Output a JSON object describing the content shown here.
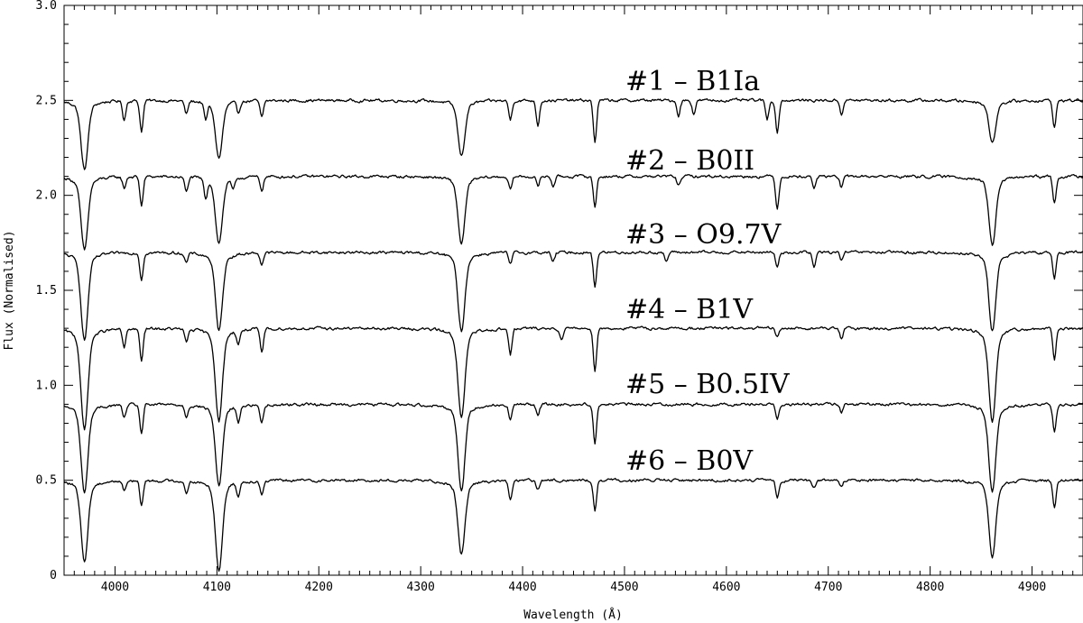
{
  "chart_data": {
    "type": "line",
    "title": "",
    "xlabel": "Wavelength (Å)",
    "ylabel": "Flux (Normalised)",
    "xlim": [
      3950,
      4950
    ],
    "ylim": [
      0,
      3.0
    ],
    "x_ticks": [
      4000,
      4100,
      4200,
      4300,
      4400,
      4500,
      4600,
      4700,
      4800,
      4900
    ],
    "x_tick_labels": [
      "4000",
      "4100",
      "4200",
      "4300",
      "4400",
      "4500",
      "4600",
      "4700",
      "4800",
      "4900"
    ],
    "y_ticks": [
      0,
      0.5,
      1.0,
      1.5,
      2.0,
      2.5,
      3.0
    ],
    "y_tick_labels": [
      "0",
      "0.5",
      "1.0",
      "1.5",
      "2.0",
      "2.5",
      "3.0"
    ],
    "grid": false,
    "series": [
      {
        "name": "#1 – B1Ia",
        "continuum": 2.5,
        "lines": [
          {
            "x": 3970,
            "depth": 0.3
          },
          {
            "x": 4009,
            "depth": 0.1
          },
          {
            "x": 4026,
            "depth": 0.16
          },
          {
            "x": 4070,
            "depth": 0.07
          },
          {
            "x": 4089,
            "depth": 0.09
          },
          {
            "x": 4102,
            "depth": 0.25
          },
          {
            "x": 4121,
            "depth": 0.06
          },
          {
            "x": 4144,
            "depth": 0.09
          },
          {
            "x": 4340,
            "depth": 0.24
          },
          {
            "x": 4388,
            "depth": 0.1
          },
          {
            "x": 4415,
            "depth": 0.13
          },
          {
            "x": 4471,
            "depth": 0.22
          },
          {
            "x": 4553,
            "depth": 0.08
          },
          {
            "x": 4568,
            "depth": 0.07
          },
          {
            "x": 4640,
            "depth": 0.1
          },
          {
            "x": 4650,
            "depth": 0.17
          },
          {
            "x": 4713,
            "depth": 0.07
          },
          {
            "x": 4861,
            "depth": 0.18
          },
          {
            "x": 4922,
            "depth": 0.14
          }
        ]
      },
      {
        "name": "#2 – B0II",
        "continuum": 2.1,
        "lines": [
          {
            "x": 3970,
            "depth": 0.32
          },
          {
            "x": 4009,
            "depth": 0.06
          },
          {
            "x": 4026,
            "depth": 0.15
          },
          {
            "x": 4070,
            "depth": 0.08
          },
          {
            "x": 4089,
            "depth": 0.1
          },
          {
            "x": 4102,
            "depth": 0.29
          },
          {
            "x": 4116,
            "depth": 0.06
          },
          {
            "x": 4144,
            "depth": 0.07
          },
          {
            "x": 4340,
            "depth": 0.29
          },
          {
            "x": 4388,
            "depth": 0.07
          },
          {
            "x": 4415,
            "depth": 0.05
          },
          {
            "x": 4430,
            "depth": 0.05
          },
          {
            "x": 4471,
            "depth": 0.16
          },
          {
            "x": 4553,
            "depth": 0.05
          },
          {
            "x": 4650,
            "depth": 0.17
          },
          {
            "x": 4686,
            "depth": 0.06
          },
          {
            "x": 4713,
            "depth": 0.06
          },
          {
            "x": 4861,
            "depth": 0.3
          },
          {
            "x": 4922,
            "depth": 0.14
          }
        ]
      },
      {
        "name": "#3 – O9.7V",
        "continuum": 1.7,
        "lines": [
          {
            "x": 3970,
            "depth": 0.38
          },
          {
            "x": 4026,
            "depth": 0.14
          },
          {
            "x": 4070,
            "depth": 0.05
          },
          {
            "x": 4102,
            "depth": 0.34
          },
          {
            "x": 4144,
            "depth": 0.06
          },
          {
            "x": 4340,
            "depth": 0.34
          },
          {
            "x": 4388,
            "depth": 0.06
          },
          {
            "x": 4430,
            "depth": 0.05
          },
          {
            "x": 4471,
            "depth": 0.18
          },
          {
            "x": 4541,
            "depth": 0.05
          },
          {
            "x": 4650,
            "depth": 0.08
          },
          {
            "x": 4686,
            "depth": 0.08
          },
          {
            "x": 4713,
            "depth": 0.04
          },
          {
            "x": 4861,
            "depth": 0.34
          },
          {
            "x": 4922,
            "depth": 0.13
          }
        ]
      },
      {
        "name": "#4 – B1V",
        "continuum": 1.3,
        "lines": [
          {
            "x": 3970,
            "depth": 0.44
          },
          {
            "x": 4009,
            "depth": 0.1
          },
          {
            "x": 4026,
            "depth": 0.17
          },
          {
            "x": 4070,
            "depth": 0.07
          },
          {
            "x": 4102,
            "depth": 0.4
          },
          {
            "x": 4121,
            "depth": 0.07
          },
          {
            "x": 4144,
            "depth": 0.13
          },
          {
            "x": 4340,
            "depth": 0.39
          },
          {
            "x": 4388,
            "depth": 0.14
          },
          {
            "x": 4438,
            "depth": 0.06
          },
          {
            "x": 4471,
            "depth": 0.22
          },
          {
            "x": 4650,
            "depth": 0.05
          },
          {
            "x": 4713,
            "depth": 0.05
          },
          {
            "x": 4861,
            "depth": 0.41
          },
          {
            "x": 4922,
            "depth": 0.16
          }
        ]
      },
      {
        "name": "#5 – B0.5IV",
        "continuum": 0.9,
        "lines": [
          {
            "x": 3970,
            "depth": 0.38
          },
          {
            "x": 4009,
            "depth": 0.07
          },
          {
            "x": 4026,
            "depth": 0.15
          },
          {
            "x": 4070,
            "depth": 0.06
          },
          {
            "x": 4102,
            "depth": 0.35
          },
          {
            "x": 4121,
            "depth": 0.09
          },
          {
            "x": 4144,
            "depth": 0.1
          },
          {
            "x": 4340,
            "depth": 0.37
          },
          {
            "x": 4388,
            "depth": 0.08
          },
          {
            "x": 4415,
            "depth": 0.05
          },
          {
            "x": 4471,
            "depth": 0.2
          },
          {
            "x": 4650,
            "depth": 0.07
          },
          {
            "x": 4713,
            "depth": 0.04
          },
          {
            "x": 4861,
            "depth": 0.38
          },
          {
            "x": 4922,
            "depth": 0.14
          }
        ]
      },
      {
        "name": "#6 – B0V",
        "continuum": 0.5,
        "lines": [
          {
            "x": 3970,
            "depth": 0.35
          },
          {
            "x": 4009,
            "depth": 0.05
          },
          {
            "x": 4026,
            "depth": 0.13
          },
          {
            "x": 4070,
            "depth": 0.06
          },
          {
            "x": 4102,
            "depth": 0.39
          },
          {
            "x": 4121,
            "depth": 0.07
          },
          {
            "x": 4144,
            "depth": 0.07
          },
          {
            "x": 4340,
            "depth": 0.32
          },
          {
            "x": 4388,
            "depth": 0.11
          },
          {
            "x": 4415,
            "depth": 0.05
          },
          {
            "x": 4471,
            "depth": 0.16
          },
          {
            "x": 4650,
            "depth": 0.09
          },
          {
            "x": 4686,
            "depth": 0.04
          },
          {
            "x": 4713,
            "depth": 0.04
          },
          {
            "x": 4861,
            "depth": 0.33
          },
          {
            "x": 4922,
            "depth": 0.14
          }
        ]
      }
    ]
  }
}
